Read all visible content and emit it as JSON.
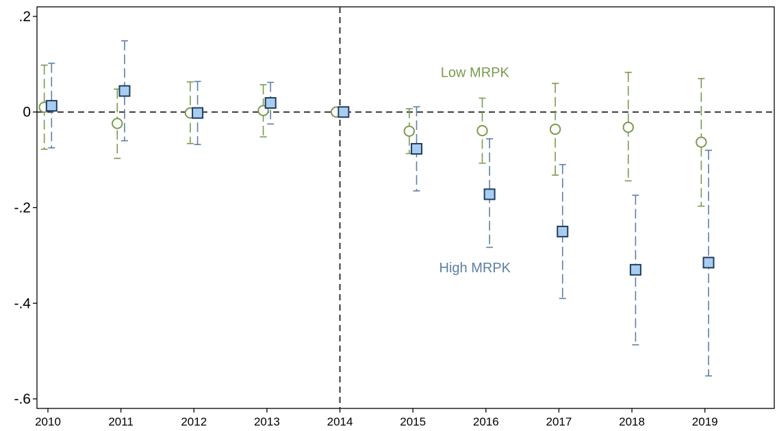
{
  "chart_data": {
    "type": "scatter",
    "title": "",
    "xlabel": "",
    "ylabel": "",
    "x": [
      2010,
      2011,
      2012,
      2013,
      2014,
      2015,
      2016,
      2017,
      2018,
      2019
    ],
    "x_tick_labels": [
      "2010",
      "2011",
      "2012",
      "2013",
      "2014",
      "2015",
      "2016",
      "2017",
      "2018",
      "2019"
    ],
    "y_ticks": [
      0.2,
      0,
      -0.2,
      -0.4,
      -0.6
    ],
    "y_tick_labels": [
      ".2",
      "0",
      "-.2",
      "-.4",
      "-.6"
    ],
    "ylim": [
      -0.62,
      0.22
    ],
    "xlim": [
      2009.85,
      2019.95
    ],
    "grid": false,
    "reference_lines": {
      "y": 0,
      "x": 2014
    },
    "series": [
      {
        "name": "Low MRPK",
        "marker": "circle",
        "color": "#7a9a4e",
        "offset": -0.05,
        "values": [
          0.01,
          -0.024,
          -0.002,
          0.003,
          0.0,
          -0.04,
          -0.039,
          -0.036,
          -0.032,
          -0.063
        ],
        "ci_low": [
          -0.078,
          -0.097,
          -0.066,
          -0.052,
          0.0,
          -0.087,
          -0.107,
          -0.132,
          -0.144,
          -0.197
        ],
        "ci_high": [
          0.098,
          0.048,
          0.063,
          0.057,
          0.0,
          0.007,
          0.029,
          0.06,
          0.083,
          0.07
        ]
      },
      {
        "name": "High MRPK",
        "marker": "square",
        "color": "#5a7fa6",
        "fill": "#a9cdee",
        "offset": 0.05,
        "values": [
          0.013,
          0.044,
          -0.002,
          0.019,
          0.0,
          -0.077,
          -0.172,
          -0.25,
          -0.33,
          -0.315
        ],
        "ci_low": [
          -0.075,
          -0.06,
          -0.068,
          -0.025,
          0.0,
          -0.165,
          -0.283,
          -0.39,
          -0.487,
          -0.552
        ],
        "ci_high": [
          0.102,
          0.149,
          0.064,
          0.062,
          0.0,
          0.011,
          -0.056,
          -0.11,
          -0.174,
          -0.08
        ]
      }
    ],
    "annotations": [
      {
        "text": "Low MRPK",
        "series": 0,
        "x": 2015.85,
        "y": 0.073
      },
      {
        "text": "High MRPK",
        "series": 1,
        "x": 2015.85,
        "y": -0.335
      }
    ]
  }
}
